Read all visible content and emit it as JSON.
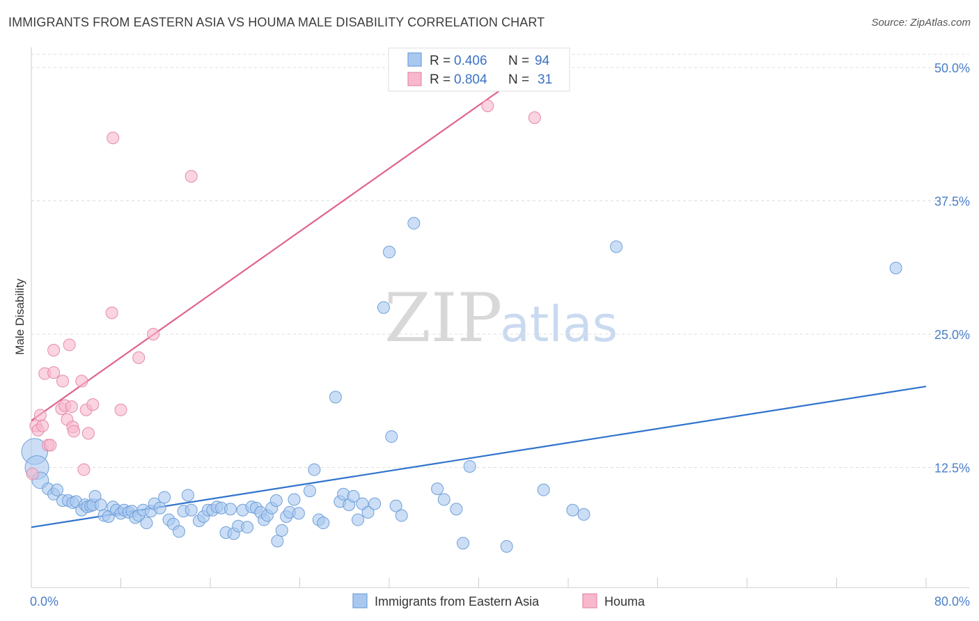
{
  "header": {
    "title": "IMMIGRANTS FROM EASTERN ASIA VS HOUMA MALE DISABILITY CORRELATION CHART",
    "source": "Source: ZipAtlas.com"
  },
  "watermark": {
    "part1": "ZIP",
    "part2": "atlas"
  },
  "legend_top": {
    "rows": [
      {
        "r_label": "R = ",
        "r_value": "0.406",
        "n_label": "N = ",
        "n_value": "94",
        "color": "#a8c8f0"
      },
      {
        "r_label": "R = ",
        "r_value": "0.804",
        "n_label": "N = ",
        "n_value": "31",
        "color": "#f7b8cb"
      }
    ]
  },
  "chart_data": {
    "type": "scatter",
    "title": "IMMIGRANTS FROM EASTERN ASIA VS HOUMA MALE DISABILITY CORRELATION CHART",
    "xlabel": "",
    "ylabel": "Male Disability",
    "xlim": [
      0,
      80
    ],
    "ylim": [
      0,
      50
    ],
    "x_tick_labels": [
      "0.0%",
      "80.0%"
    ],
    "y_ticks": [
      12.5,
      25.0,
      37.5,
      50.0
    ],
    "y_tick_labels": [
      "12.5%",
      "25.0%",
      "37.5%",
      "50.0%"
    ],
    "grid": "horizontal dashed",
    "legend_position": "top-center",
    "series": [
      {
        "name": "Immigrants from Eastern Asia",
        "color": "#a8c8f0",
        "stroke": "#6f9fd8",
        "trend_color": "#2f73cc",
        "trend": {
          "x": [
            0,
            80
          ],
          "y": [
            6.9,
            20.1
          ]
        },
        "points": [
          [
            0.3,
            14.0,
            2.2
          ],
          [
            0.5,
            12.5,
            2.0
          ],
          [
            0.8,
            11.3,
            1.4
          ],
          [
            1.5,
            10.5,
            1.0
          ],
          [
            2.0,
            10.0,
            1.0
          ],
          [
            2.3,
            10.4,
            1.0
          ],
          [
            2.8,
            9.4,
            1.0
          ],
          [
            3.3,
            9.4,
            1.0
          ],
          [
            3.7,
            9.2,
            1.0
          ],
          [
            4.0,
            9.3,
            1.0
          ],
          [
            4.5,
            8.5,
            1.0
          ],
          [
            4.8,
            9.0,
            1.0
          ],
          [
            5.0,
            8.8,
            1.0
          ],
          [
            5.3,
            8.9,
            1.0
          ],
          [
            5.5,
            9.0,
            1.0
          ],
          [
            5.7,
            9.8,
            1.0
          ],
          [
            6.2,
            9.0,
            1.0
          ],
          [
            6.5,
            8.0,
            1.0
          ],
          [
            6.9,
            7.9,
            1.0
          ],
          [
            7.3,
            8.8,
            1.0
          ],
          [
            7.6,
            8.5,
            1.0
          ],
          [
            8.0,
            8.2,
            1.0
          ],
          [
            8.3,
            8.5,
            1.0
          ],
          [
            8.7,
            8.3,
            1.0
          ],
          [
            9.0,
            8.4,
            1.0
          ],
          [
            9.3,
            7.8,
            1.0
          ],
          [
            9.6,
            8.0,
            1.0
          ],
          [
            10.0,
            8.5,
            1.0
          ],
          [
            10.3,
            7.3,
            1.0
          ],
          [
            10.7,
            8.4,
            1.0
          ],
          [
            11.0,
            9.1,
            1.0
          ],
          [
            11.5,
            8.7,
            1.0
          ],
          [
            11.9,
            9.7,
            1.0
          ],
          [
            12.3,
            7.6,
            1.0
          ],
          [
            12.7,
            7.2,
            1.0
          ],
          [
            13.2,
            6.5,
            1.0
          ],
          [
            13.6,
            8.4,
            1.0
          ],
          [
            14.0,
            9.9,
            1.0
          ],
          [
            14.3,
            8.5,
            1.0
          ],
          [
            15.0,
            7.5,
            1.0
          ],
          [
            15.4,
            7.9,
            1.0
          ],
          [
            15.8,
            8.5,
            1.0
          ],
          [
            16.2,
            8.5,
            1.0
          ],
          [
            16.6,
            8.8,
            1.0
          ],
          [
            17.0,
            8.7,
            1.0
          ],
          [
            17.4,
            6.4,
            1.0
          ],
          [
            17.8,
            8.6,
            1.0
          ],
          [
            18.1,
            6.3,
            1.0
          ],
          [
            18.5,
            7.0,
            1.0
          ],
          [
            18.9,
            8.5,
            1.0
          ],
          [
            19.3,
            6.9,
            1.0
          ],
          [
            19.7,
            8.8,
            1.0
          ],
          [
            20.1,
            8.7,
            1.0
          ],
          [
            20.5,
            8.3,
            1.0
          ],
          [
            20.8,
            7.6,
            1.0
          ],
          [
            21.1,
            8.0,
            1.0
          ],
          [
            21.5,
            8.7,
            1.0
          ],
          [
            21.9,
            9.4,
            1.0
          ],
          [
            22.0,
            5.6,
            1.0
          ],
          [
            22.4,
            6.6,
            1.0
          ],
          [
            22.8,
            7.9,
            1.0
          ],
          [
            23.1,
            8.3,
            1.0
          ],
          [
            23.5,
            9.5,
            1.0
          ],
          [
            23.9,
            8.2,
            1.0
          ],
          [
            24.9,
            10.3,
            1.0
          ],
          [
            25.3,
            12.3,
            1.0
          ],
          [
            25.7,
            7.6,
            1.0
          ],
          [
            26.1,
            7.3,
            1.0
          ],
          [
            27.2,
            19.1,
            1.0
          ],
          [
            27.6,
            9.3,
            1.0
          ],
          [
            27.9,
            10.0,
            1.0
          ],
          [
            28.4,
            9.0,
            1.0
          ],
          [
            28.8,
            9.8,
            1.0
          ],
          [
            29.2,
            7.6,
            1.0
          ],
          [
            29.6,
            9.1,
            1.0
          ],
          [
            30.1,
            8.3,
            1.0
          ],
          [
            30.7,
            9.1,
            1.0
          ],
          [
            31.5,
            27.5,
            1.0
          ],
          [
            32.2,
            15.4,
            1.0
          ],
          [
            32.0,
            32.7,
            1.0
          ],
          [
            32.6,
            8.9,
            1.0
          ],
          [
            33.1,
            8.0,
            1.0
          ],
          [
            34.2,
            35.4,
            1.0
          ],
          [
            36.3,
            10.5,
            1.0
          ],
          [
            36.9,
            9.5,
            1.0
          ],
          [
            38.0,
            8.6,
            1.0
          ],
          [
            38.6,
            5.4,
            1.0
          ],
          [
            39.2,
            12.6,
            1.0
          ],
          [
            42.5,
            5.1,
            1.0
          ],
          [
            45.8,
            10.4,
            1.0
          ],
          [
            48.4,
            8.5,
            1.0
          ],
          [
            49.4,
            8.1,
            1.0
          ],
          [
            52.3,
            33.2,
            1.0
          ],
          [
            77.3,
            31.2,
            1.0
          ]
        ]
      },
      {
        "name": "Houma",
        "color": "#f7b8cb",
        "stroke": "#e58aa8",
        "trend_color": "#e0628b",
        "trend": {
          "x": [
            0,
            44.8
          ],
          "y": [
            16.9,
            50.0
          ]
        },
        "points": [
          [
            0.1,
            11.9,
            1.0
          ],
          [
            0.4,
            16.4,
            1.0
          ],
          [
            0.6,
            16.0,
            1.0
          ],
          [
            0.8,
            17.4,
            1.0
          ],
          [
            1.0,
            16.4,
            1.0
          ],
          [
            1.2,
            21.3,
            1.0
          ],
          [
            1.5,
            14.6,
            1.0
          ],
          [
            1.7,
            14.6,
            1.0
          ],
          [
            2.0,
            21.4,
            1.0
          ],
          [
            2.0,
            23.5,
            1.0
          ],
          [
            2.7,
            18.0,
            1.0
          ],
          [
            2.8,
            20.6,
            1.0
          ],
          [
            3.0,
            18.3,
            1.0
          ],
          [
            3.2,
            17.0,
            1.0
          ],
          [
            3.4,
            24.0,
            1.0
          ],
          [
            3.6,
            18.2,
            1.0
          ],
          [
            3.7,
            16.3,
            1.0
          ],
          [
            3.8,
            15.9,
            1.0
          ],
          [
            4.5,
            20.6,
            1.0
          ],
          [
            4.7,
            12.3,
            1.0
          ],
          [
            4.9,
            17.9,
            1.0
          ],
          [
            5.1,
            15.7,
            1.0
          ],
          [
            5.5,
            18.4,
            1.0
          ],
          [
            7.2,
            27.0,
            1.0
          ],
          [
            7.3,
            43.4,
            1.0
          ],
          [
            8.0,
            17.9,
            1.0
          ],
          [
            9.6,
            22.8,
            1.0
          ],
          [
            10.9,
            25.0,
            1.0
          ],
          [
            14.3,
            39.8,
            1.0
          ],
          [
            40.8,
            46.4,
            1.0
          ],
          [
            45.0,
            45.3,
            1.0
          ]
        ]
      }
    ]
  }
}
